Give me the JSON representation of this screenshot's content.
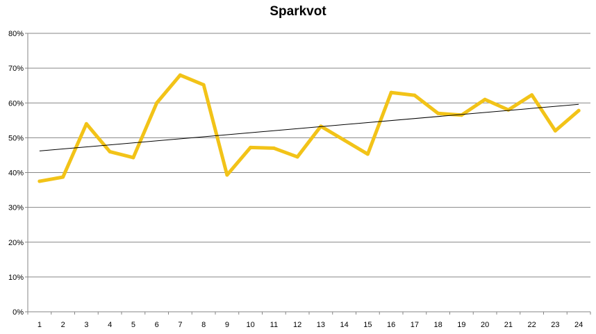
{
  "chart_data": {
    "type": "line",
    "title": "Sparkvot",
    "xlabel": "",
    "ylabel": "",
    "categories": [
      "1",
      "2",
      "3",
      "4",
      "5",
      "6",
      "7",
      "8",
      "9",
      "10",
      "11",
      "12",
      "13",
      "14",
      "15",
      "16",
      "17",
      "18",
      "19",
      "20",
      "21",
      "22",
      "23",
      "24"
    ],
    "series": [
      {
        "values": [
          37.5,
          38.7,
          54.0,
          46.0,
          44.3,
          60.0,
          68.0,
          65.2,
          39.3,
          47.2,
          47.0,
          44.5,
          53.3,
          49.3,
          45.3,
          63.0,
          62.2,
          57.0,
          56.5,
          61.0,
          58.0,
          62.3,
          52.0,
          57.8
        ],
        "color": "#f2c318"
      }
    ],
    "trendline": {
      "start": 46.2,
      "end": 59.6,
      "color": "#000000"
    },
    "ylim": [
      0,
      80
    ],
    "yticks": [
      "0%",
      "10%",
      "20%",
      "30%",
      "40%",
      "50%",
      "60%",
      "70%",
      "80%"
    ],
    "grid": "horizontal",
    "legend": "none"
  }
}
